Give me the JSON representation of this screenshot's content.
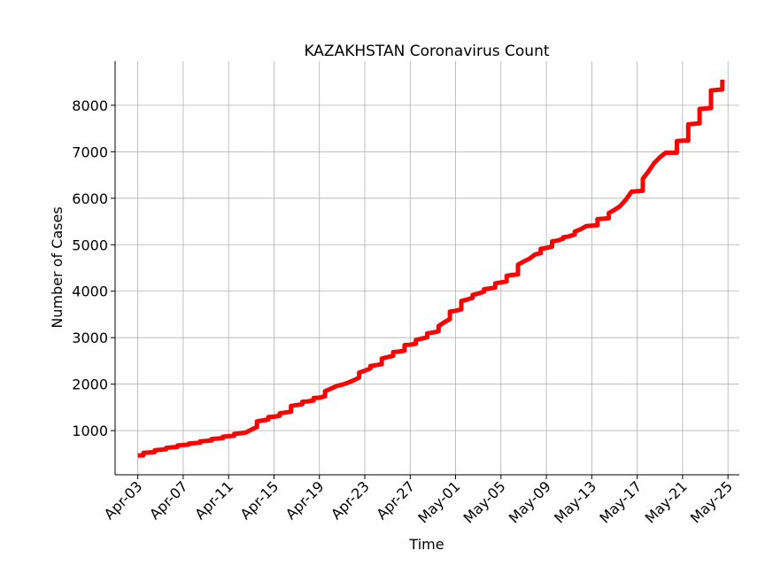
{
  "chart_data": {
    "type": "line",
    "title": "KAZAKHSTAN Coronavirus Count",
    "xlabel": "Time",
    "ylabel": "Number of Cases",
    "ylim": [
      50,
      8950
    ],
    "yticks": [
      1000,
      2000,
      3000,
      4000,
      5000,
      6000,
      7000,
      8000
    ],
    "xlim": [
      "2020-04-01",
      "2020-05-26"
    ],
    "xticks": [
      "2020-04-03",
      "2020-04-07",
      "2020-04-11",
      "2020-04-15",
      "2020-04-19",
      "2020-04-23",
      "2020-04-27",
      "2020-05-01",
      "2020-05-05",
      "2020-05-09",
      "2020-05-13",
      "2020-05-17",
      "2020-05-21",
      "2020-05-25"
    ],
    "xtick_labels": [
      "Apr-03",
      "Apr-07",
      "Apr-11",
      "Apr-15",
      "Apr-19",
      "Apr-23",
      "Apr-27",
      "May-01",
      "May-05",
      "May-09",
      "May-13",
      "May-17",
      "May-21",
      "May-25"
    ],
    "grid": true,
    "line_color": "#ff0000",
    "series": [
      {
        "name": "",
        "points": [
          [
            "2020-04-03 00:00",
            464
          ],
          [
            "2020-04-03 12:00",
            470
          ],
          [
            "2020-04-03 12:00",
            520
          ],
          [
            "2020-04-04 00:00",
            530
          ],
          [
            "2020-04-04 12:00",
            540
          ],
          [
            "2020-04-04 12:00",
            580
          ],
          [
            "2020-04-05 00:00",
            590
          ],
          [
            "2020-04-05 12:00",
            600
          ],
          [
            "2020-04-05 12:00",
            630
          ],
          [
            "2020-04-06 00:00",
            640
          ],
          [
            "2020-04-06 12:00",
            650
          ],
          [
            "2020-04-06 12:00",
            680
          ],
          [
            "2020-04-07 00:00",
            690
          ],
          [
            "2020-04-07 12:00",
            700
          ],
          [
            "2020-04-07 12:00",
            720
          ],
          [
            "2020-04-08 00:00",
            730
          ],
          [
            "2020-04-08 12:00",
            740
          ],
          [
            "2020-04-08 12:00",
            770
          ],
          [
            "2020-04-09 00:00",
            780
          ],
          [
            "2020-04-09 12:00",
            790
          ],
          [
            "2020-04-09 12:00",
            820
          ],
          [
            "2020-04-10 00:00",
            830
          ],
          [
            "2020-04-10 12:00",
            840
          ],
          [
            "2020-04-10 12:00",
            870
          ],
          [
            "2020-04-11 00:00",
            880
          ],
          [
            "2020-04-11 12:00",
            890
          ],
          [
            "2020-04-11 12:00",
            930
          ],
          [
            "2020-04-12 00:00",
            940
          ],
          [
            "2020-04-12 12:00",
            960
          ],
          [
            "2020-04-13 00:00",
            1020
          ],
          [
            "2020-04-13 12:00",
            1080
          ],
          [
            "2020-04-13 12:00",
            1200
          ],
          [
            "2020-04-14 00:00",
            1220
          ],
          [
            "2020-04-14 12:00",
            1240
          ],
          [
            "2020-04-14 12:00",
            1290
          ],
          [
            "2020-04-15 00:00",
            1300
          ],
          [
            "2020-04-15 12:00",
            1320
          ],
          [
            "2020-04-15 12:00",
            1370
          ],
          [
            "2020-04-16 00:00",
            1390
          ],
          [
            "2020-04-16 12:00",
            1410
          ],
          [
            "2020-04-16 12:00",
            1530
          ],
          [
            "2020-04-17 00:00",
            1550
          ],
          [
            "2020-04-17 12:00",
            1570
          ],
          [
            "2020-04-17 12:00",
            1620
          ],
          [
            "2020-04-18 00:00",
            1630
          ],
          [
            "2020-04-18 12:00",
            1650
          ],
          [
            "2020-04-18 12:00",
            1700
          ],
          [
            "2020-04-19 00:00",
            1710
          ],
          [
            "2020-04-19 12:00",
            1740
          ],
          [
            "2020-04-19 12:00",
            1850
          ],
          [
            "2020-04-20 00:00",
            1900
          ],
          [
            "2020-04-20 12:00",
            1960
          ],
          [
            "2020-04-21 00:00",
            1990
          ],
          [
            "2020-04-21 12:00",
            2030
          ],
          [
            "2020-04-22 00:00",
            2080
          ],
          [
            "2020-04-22 12:00",
            2140
          ],
          [
            "2020-04-22 12:00",
            2250
          ],
          [
            "2020-04-23 00:00",
            2290
          ],
          [
            "2020-04-23 12:00",
            2340
          ],
          [
            "2020-04-23 12:00",
            2390
          ],
          [
            "2020-04-24 00:00",
            2410
          ],
          [
            "2020-04-24 12:00",
            2430
          ],
          [
            "2020-04-24 12:00",
            2550
          ],
          [
            "2020-04-25 00:00",
            2580
          ],
          [
            "2020-04-25 12:00",
            2610
          ],
          [
            "2020-04-25 12:00",
            2690
          ],
          [
            "2020-04-26 00:00",
            2700
          ],
          [
            "2020-04-26 12:00",
            2720
          ],
          [
            "2020-04-26 12:00",
            2840
          ],
          [
            "2020-04-27 00:00",
            2850
          ],
          [
            "2020-04-27 12:00",
            2870
          ],
          [
            "2020-04-27 12:00",
            2950
          ],
          [
            "2020-04-28 00:00",
            2980
          ],
          [
            "2020-04-28 12:00",
            3010
          ],
          [
            "2020-04-28 12:00",
            3090
          ],
          [
            "2020-04-29 00:00",
            3110
          ],
          [
            "2020-04-29 12:00",
            3140
          ],
          [
            "2020-04-29 12:00",
            3250
          ],
          [
            "2020-04-30 00:00",
            3330
          ],
          [
            "2020-04-30 12:00",
            3400
          ],
          [
            "2020-04-30 12:00",
            3560
          ],
          [
            "2020-05-01 00:00",
            3580
          ],
          [
            "2020-05-01 12:00",
            3610
          ],
          [
            "2020-05-01 12:00",
            3790
          ],
          [
            "2020-05-02 00:00",
            3820
          ],
          [
            "2020-05-02 12:00",
            3860
          ],
          [
            "2020-05-02 12:00",
            3920
          ],
          [
            "2020-05-03 00:00",
            3950
          ],
          [
            "2020-05-03 12:00",
            3990
          ],
          [
            "2020-05-03 12:00",
            4040
          ],
          [
            "2020-05-04 00:00",
            4060
          ],
          [
            "2020-05-04 12:00",
            4080
          ],
          [
            "2020-05-04 12:00",
            4170
          ],
          [
            "2020-05-05 00:00",
            4190
          ],
          [
            "2020-05-05 12:00",
            4210
          ],
          [
            "2020-05-05 12:00",
            4330
          ],
          [
            "2020-05-06 00:00",
            4350
          ],
          [
            "2020-05-06 12:00",
            4360
          ],
          [
            "2020-05-06 12:00",
            4570
          ],
          [
            "2020-05-07 00:00",
            4640
          ],
          [
            "2020-05-07 12:00",
            4700
          ],
          [
            "2020-05-08 00:00",
            4790
          ],
          [
            "2020-05-08 12:00",
            4820
          ],
          [
            "2020-05-08 12:00",
            4910
          ],
          [
            "2020-05-09 00:00",
            4930
          ],
          [
            "2020-05-09 12:00",
            4960
          ],
          [
            "2020-05-09 12:00",
            5070
          ],
          [
            "2020-05-10 00:00",
            5090
          ],
          [
            "2020-05-10 12:00",
            5130
          ],
          [
            "2020-05-10 12:00",
            5160
          ],
          [
            "2020-05-11 00:00",
            5180
          ],
          [
            "2020-05-11 12:00",
            5220
          ],
          [
            "2020-05-11 12:00",
            5280
          ],
          [
            "2020-05-12 00:00",
            5330
          ],
          [
            "2020-05-12 12:00",
            5400
          ],
          [
            "2020-05-13 00:00",
            5410
          ],
          [
            "2020-05-13 12:00",
            5420
          ],
          [
            "2020-05-13 12:00",
            5550
          ],
          [
            "2020-05-14 00:00",
            5560
          ],
          [
            "2020-05-14 12:00",
            5570
          ],
          [
            "2020-05-14 12:00",
            5680
          ],
          [
            "2020-05-15 00:00",
            5750
          ],
          [
            "2020-05-15 12:00",
            5830
          ],
          [
            "2020-05-16 00:00",
            5970
          ],
          [
            "2020-05-16 12:00",
            6140
          ],
          [
            "2020-05-17 00:00",
            6150
          ],
          [
            "2020-05-17 12:00",
            6160
          ],
          [
            "2020-05-17 12:00",
            6420
          ],
          [
            "2020-05-18 00:00",
            6580
          ],
          [
            "2020-05-18 12:00",
            6760
          ],
          [
            "2020-05-19 00:00",
            6880
          ],
          [
            "2020-05-19 12:00",
            6980
          ],
          [
            "2020-05-20 00:00",
            6980
          ],
          [
            "2020-05-20 12:00",
            6980
          ],
          [
            "2020-05-20 12:00",
            7230
          ],
          [
            "2020-05-21 00:00",
            7240
          ],
          [
            "2020-05-21 12:00",
            7240
          ],
          [
            "2020-05-21 12:00",
            7590
          ],
          [
            "2020-05-22 00:00",
            7600
          ],
          [
            "2020-05-22 12:00",
            7610
          ],
          [
            "2020-05-22 12:00",
            7920
          ],
          [
            "2020-05-23 00:00",
            7930
          ],
          [
            "2020-05-23 12:00",
            7940
          ],
          [
            "2020-05-23 12:00",
            8320
          ],
          [
            "2020-05-24 00:00",
            8330
          ],
          [
            "2020-05-24 12:00",
            8340
          ],
          [
            "2020-05-24 12:00",
            8550
          ]
        ]
      }
    ]
  }
}
